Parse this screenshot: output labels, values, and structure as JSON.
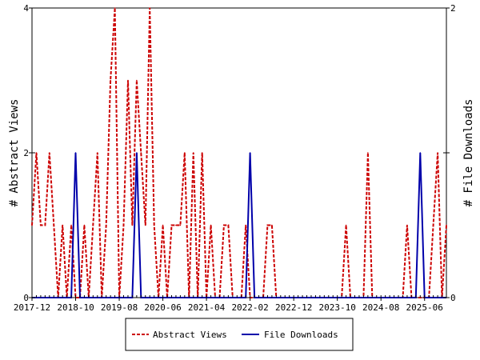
{
  "chart_data": {
    "type": "line",
    "x_start": "2017-12",
    "x_end": "2025-09",
    "x_tick_labels": [
      "2017-12",
      "2018-10",
      "2019-08",
      "2020-06",
      "2021-04",
      "2022-02",
      "2022-12",
      "2023-10",
      "2024-08",
      "2025-06"
    ],
    "y_left_label": "# Abstract Views",
    "y_right_label": "# File Downloads",
    "y_left_lim": [
      0,
      4
    ],
    "y_right_lim": [
      0,
      2
    ],
    "y_left_ticks": [
      "0",
      "2",
      "4"
    ],
    "y_right_ticks": [
      "0",
      "1",
      "2"
    ],
    "legend_position": "bottom",
    "series": [
      {
        "name": "Abstract Views",
        "axis": "left",
        "color": "#cc0000",
        "style": "dashed",
        "values": [
          1,
          2,
          1,
          1,
          2,
          1,
          0,
          1,
          0,
          1,
          0,
          0,
          1,
          0,
          1,
          2,
          0,
          1,
          3,
          4,
          0,
          1,
          3,
          1,
          3,
          2,
          1,
          4,
          1,
          0,
          1,
          0,
          1,
          1,
          1,
          2,
          0,
          2,
          0,
          2,
          0,
          1,
          0,
          0,
          1,
          1,
          0,
          0,
          0,
          1,
          0,
          0,
          0,
          0,
          1,
          1,
          0,
          0,
          0,
          0,
          0,
          0,
          0,
          0,
          0,
          0,
          0,
          0,
          0,
          0,
          0,
          0,
          1,
          0,
          0,
          0,
          0,
          2,
          0,
          0,
          0,
          0,
          0,
          0,
          0,
          0,
          1,
          0,
          0,
          0,
          0,
          0,
          1,
          2,
          0,
          1
        ]
      },
      {
        "name": "File Downloads",
        "axis": "right",
        "color": "#0000aa",
        "style": "solid",
        "values": [
          0,
          0,
          0,
          0,
          0,
          0,
          0,
          0,
          0,
          0,
          1,
          0,
          0,
          0,
          0,
          0,
          0,
          0,
          0,
          0,
          0,
          0,
          0,
          0,
          1,
          0,
          0,
          0,
          0,
          0,
          0,
          0,
          0,
          0,
          0,
          0,
          0,
          0,
          0,
          0,
          0,
          0,
          0,
          0,
          0,
          0,
          0,
          0,
          0,
          0,
          1,
          0,
          0,
          0,
          0,
          0,
          0,
          0,
          0,
          0,
          0,
          0,
          0,
          0,
          0,
          0,
          0,
          0,
          0,
          0,
          0,
          0,
          0,
          0,
          0,
          0,
          0,
          0,
          0,
          0,
          0,
          0,
          0,
          0,
          0,
          0,
          0,
          0,
          0,
          1,
          0,
          0,
          0,
          0,
          0,
          0
        ]
      }
    ]
  }
}
